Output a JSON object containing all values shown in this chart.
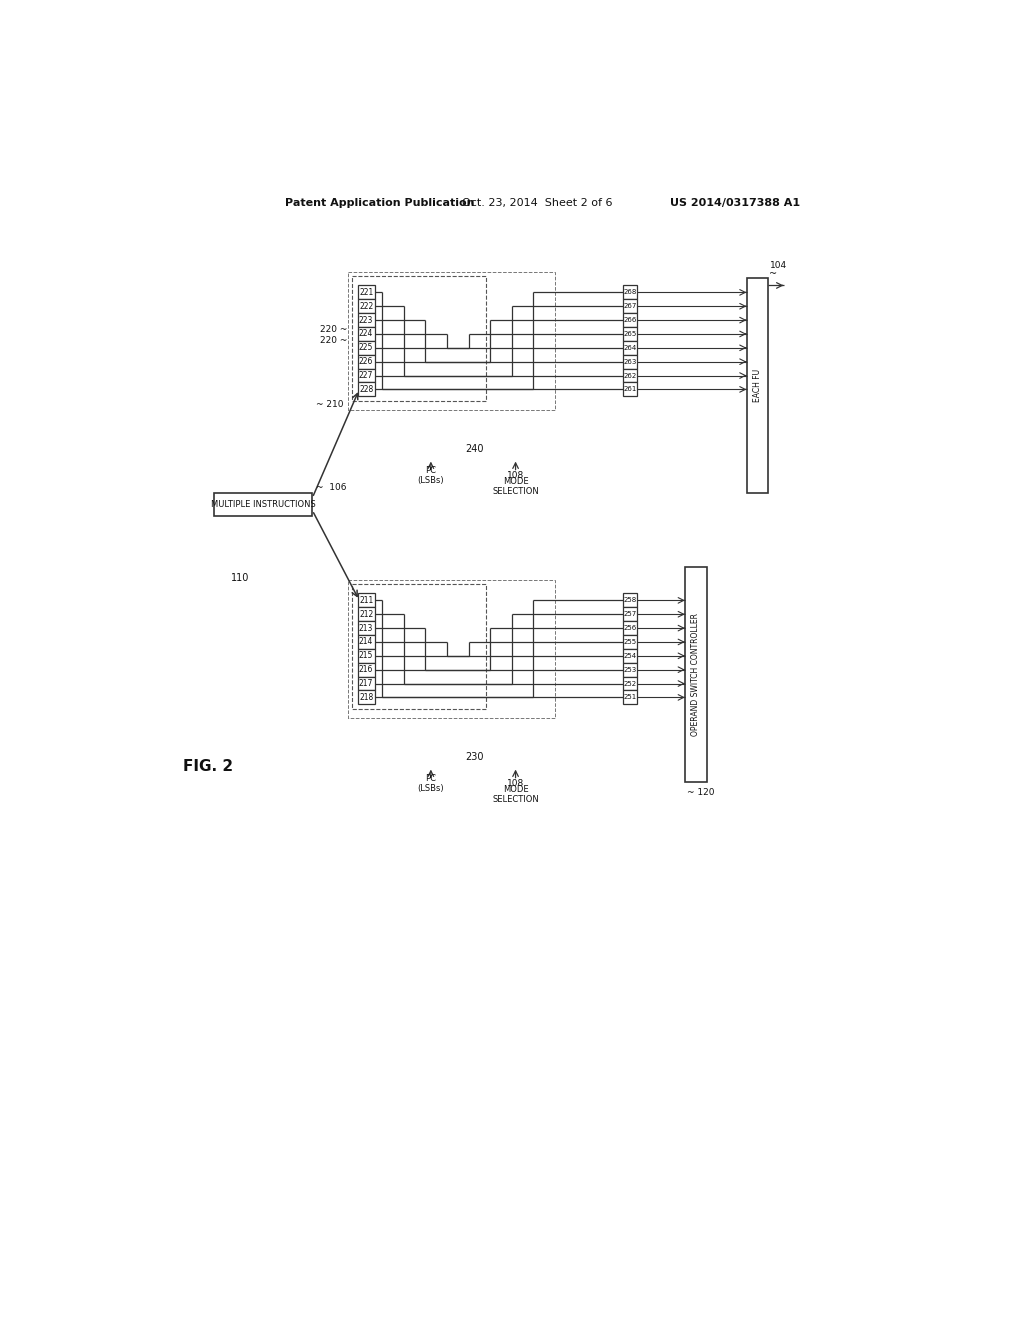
{
  "bg": "#ffffff",
  "lc": "#333333",
  "header_left": "Patent Application Publication",
  "header_center": "Oct. 23, 2014  Sheet 2 of 6",
  "header_right": "US 2014/0317388 A1",
  "fig_label": "FIG. 2",
  "upper_regs": [
    "221",
    "222",
    "223",
    "224",
    "225",
    "226",
    "227",
    "228"
  ],
  "lower_regs": [
    "211",
    "212",
    "213",
    "214",
    "215",
    "216",
    "217",
    "218"
  ],
  "upper_out": [
    "261",
    "262",
    "263",
    "264",
    "265",
    "266",
    "267",
    "268"
  ],
  "lower_out": [
    "251",
    "252",
    "253",
    "254",
    "255",
    "256",
    "257",
    "258"
  ],
  "note_220": "220",
  "note_210": "210",
  "note_240": "240",
  "note_230": "230",
  "note_106": "106",
  "note_104": "104",
  "note_108": "108",
  "note_110": "110",
  "note_120": "120",
  "mi_text": "MULTIPLE INSTRUCTIONS",
  "osc_text": "OPERAND SWITCH CONTROLLER",
  "efu_text": "EACH FU",
  "mode_sel": "MODE\nSELECTION",
  "pc_lsbs": "PC\n(LSBs)"
}
